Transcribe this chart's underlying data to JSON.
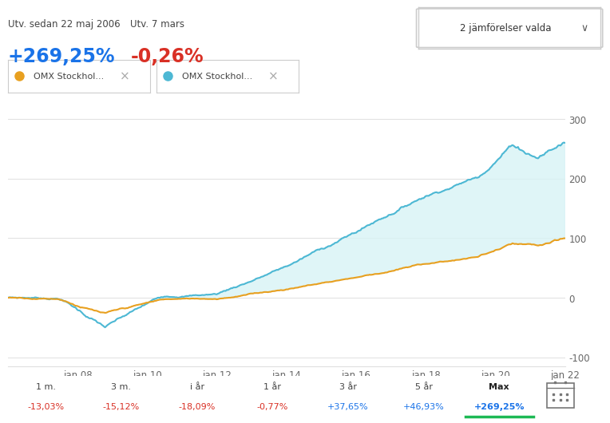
{
  "title_left1": "Utv. sedan 22 maj 2006",
  "title_left2": "Utv. 7 mars",
  "value_left1": "+269,25%",
  "value_left2": "-0,26%",
  "button_text": "2 jämförelser valda",
  "legend1": "OMX Stockhol...",
  "legend2": "OMX Stockhol...",
  "x_labels": [
    "jan 08",
    "jan 10",
    "jan 12",
    "jan 14",
    "jan 16",
    "jan 18",
    "jan 20",
    "jan 22"
  ],
  "y_ticks": [
    300,
    200,
    100,
    0,
    -100
  ],
  "period_labels": [
    "1 m.",
    "3 m.",
    "i år",
    "1 år",
    "3 år",
    "5 år",
    "Max"
  ],
  "period_values": [
    "-13,03%",
    "-15,12%",
    "-18,09%",
    "-0,77%",
    "+37,65%",
    "+46,93%",
    "+269,25%"
  ],
  "period_colors": [
    "red",
    "red",
    "red",
    "red",
    "blue",
    "blue",
    "blue"
  ],
  "active_period_idx": 6,
  "color_blue": "#4db8d4",
  "color_orange": "#e8a020",
  "color_fill": "#d8f3f5",
  "bg_color": "#ffffff",
  "axis_color": "#e0e0e0",
  "text_color": "#666666",
  "label_color": "#444444",
  "value_blue": "#1a73e8",
  "value_red": "#d93025",
  "green_underline": "#1db954"
}
